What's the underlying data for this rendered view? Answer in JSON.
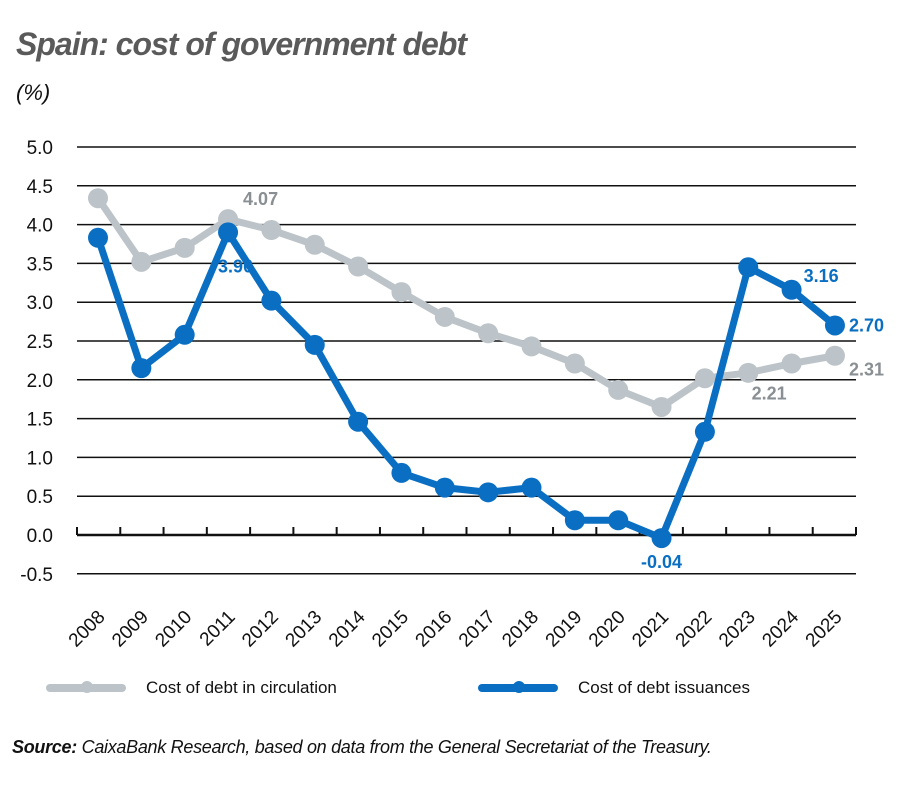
{
  "title": "Spain: cost of government debt",
  "unit": "(%)",
  "legend": [
    {
      "label": "Cost of debt in circulation",
      "color": "#bcc4c9"
    },
    {
      "label": "Cost of debt issuances",
      "color": "#0a6fc2"
    }
  ],
  "source": {
    "prefix": "Source:",
    "text": " CaixaBank Research, based on data from the General Secretariat of the Treasury."
  },
  "colors": {
    "circulation": "#bcc4c9",
    "circulation_label": "#8a8f93",
    "issuances": "#0a6fc2",
    "grid": "#111111"
  },
  "chart_data": {
    "type": "line",
    "title": "Spain: cost of government debt",
    "xlabel": "",
    "ylabel": "(%)",
    "ylim": [
      -0.5,
      5.0
    ],
    "yticks": [
      "5.0",
      "4.5",
      "4.0",
      "3.5",
      "3.0",
      "2.5",
      "2.0",
      "1.5",
      "1.0",
      "0.5",
      "0.0",
      "-0.5"
    ],
    "grid": true,
    "legend_position": "bottom",
    "categories": [
      "2008",
      "2009",
      "2010",
      "2011",
      "2012",
      "2013",
      "2014",
      "2015",
      "2016",
      "2017",
      "2018",
      "2019",
      "2020",
      "2021",
      "2022",
      "2023",
      "2024",
      "2025"
    ],
    "series": [
      {
        "name": "Cost of debt in circulation",
        "values": [
          4.34,
          3.52,
          3.7,
          4.07,
          3.93,
          3.74,
          3.46,
          3.13,
          2.81,
          2.6,
          2.43,
          2.21,
          1.87,
          1.65,
          2.02,
          2.09,
          2.21,
          2.31
        ]
      },
      {
        "name": "Cost of debt issuances",
        "values": [
          3.83,
          2.15,
          2.58,
          3.9,
          3.02,
          2.45,
          1.46,
          0.8,
          0.61,
          0.55,
          0.61,
          0.19,
          0.19,
          -0.04,
          1.33,
          3.45,
          3.16,
          2.7
        ]
      }
    ],
    "annotations": [
      {
        "series": 0,
        "year": "2011",
        "text": "4.07"
      },
      {
        "series": 1,
        "year": "2011",
        "text": "3.90"
      },
      {
        "series": 1,
        "year": "2021",
        "text": "-0.04"
      },
      {
        "series": 1,
        "year": "2024",
        "text": "3.16"
      },
      {
        "series": 1,
        "year": "2025",
        "text": "2.70"
      },
      {
        "series": 0,
        "year": "2024",
        "text": "2.21"
      },
      {
        "series": 0,
        "year": "2025",
        "text": "2.31"
      }
    ]
  }
}
